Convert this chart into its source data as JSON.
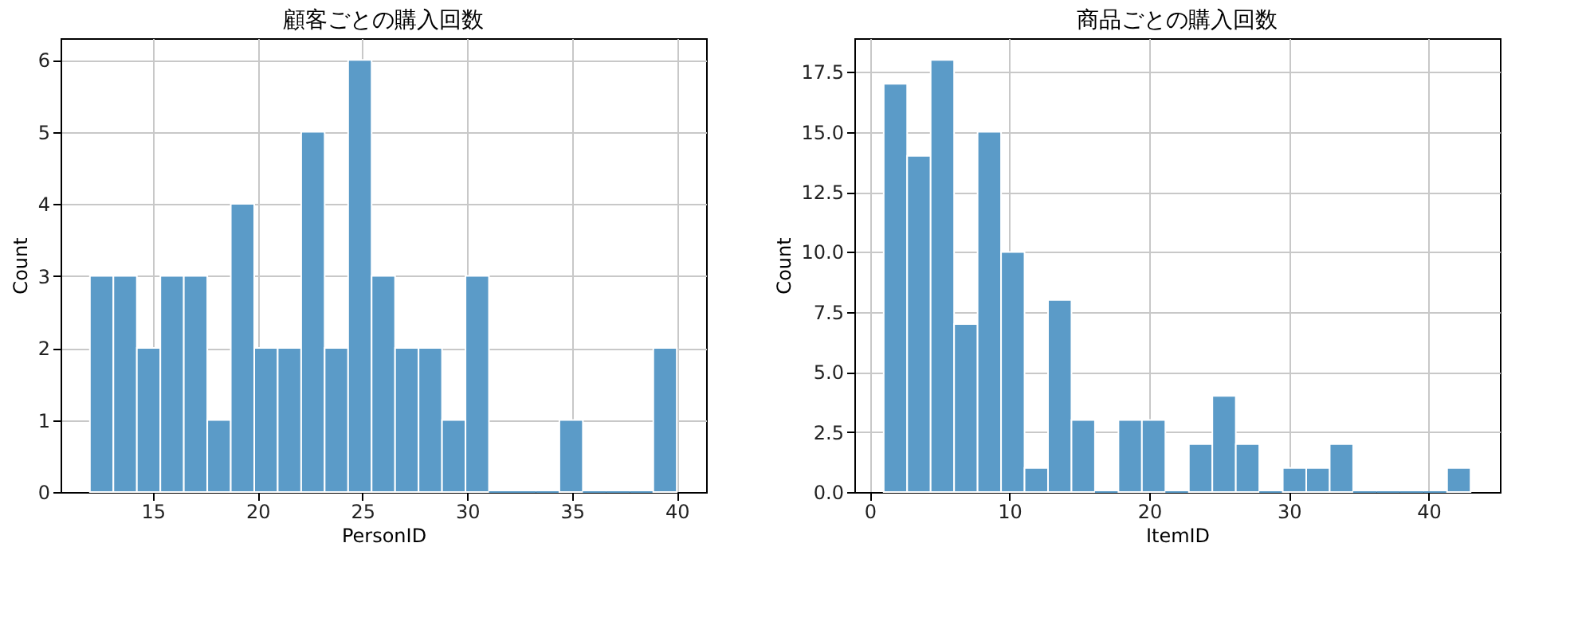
{
  "chart_data": [
    {
      "type": "histogram",
      "title": "顧客ごとの購入回数",
      "xlabel": "PersonID",
      "ylabel": "Count",
      "color": "#5b9bc8",
      "bins": [
        12,
        13.12,
        14.24,
        15.36,
        16.48,
        17.6,
        18.72,
        19.84,
        20.96,
        22.08,
        23.2,
        24.32,
        25.44,
        26.56,
        27.68,
        28.8,
        29.92,
        31.04,
        32.16,
        33.28,
        34.4,
        35.52,
        36.64,
        37.76,
        38.88,
        40
      ],
      "values": [
        3,
        3,
        2,
        3,
        3,
        1,
        4,
        2,
        2,
        5,
        2,
        6,
        3,
        2,
        2,
        1,
        3,
        0,
        0,
        0,
        1,
        0,
        0,
        0,
        2
      ],
      "xlim": [
        10.6,
        41.4
      ],
      "xticks": [
        15,
        20,
        25,
        30,
        35,
        40
      ],
      "ylim": [
        0,
        6.3
      ],
      "yticks": [
        0,
        1,
        2,
        3,
        4,
        5,
        6
      ],
      "grid": true
    },
    {
      "type": "histogram",
      "title": "商品ごとの購入回数",
      "xlabel": "ItemID",
      "ylabel": "Count",
      "color": "#5b9bc8",
      "bins": [
        1,
        2.68,
        4.36,
        6.04,
        7.72,
        9.4,
        11.08,
        12.76,
        14.44,
        16.12,
        17.8,
        19.48,
        21.16,
        22.84,
        24.52,
        26.2,
        27.88,
        29.56,
        31.24,
        32.92,
        34.6,
        36.28,
        37.96,
        39.64,
        41.32,
        43
      ],
      "values": [
        17,
        14,
        18,
        7,
        15,
        10,
        1,
        8,
        3,
        0,
        3,
        3,
        0,
        2,
        4,
        2,
        0,
        1,
        1,
        2,
        0,
        0,
        0,
        0,
        1
      ],
      "xlim": [
        -1.1,
        45.1
      ],
      "xticks": [
        0,
        10,
        20,
        30,
        40
      ],
      "ylim": [
        0,
        18.9
      ],
      "yticks": [
        {
          "value": 0,
          "label": "0.0"
        },
        {
          "value": 2.5,
          "label": "2.5"
        },
        {
          "value": 5,
          "label": "5.0"
        },
        {
          "value": 7.5,
          "label": "7.5"
        },
        {
          "value": 10,
          "label": "10.0"
        },
        {
          "value": 12.5,
          "label": "12.5"
        },
        {
          "value": 15,
          "label": "15.0"
        },
        {
          "value": 17.5,
          "label": "17.5"
        }
      ],
      "grid": true
    }
  ]
}
